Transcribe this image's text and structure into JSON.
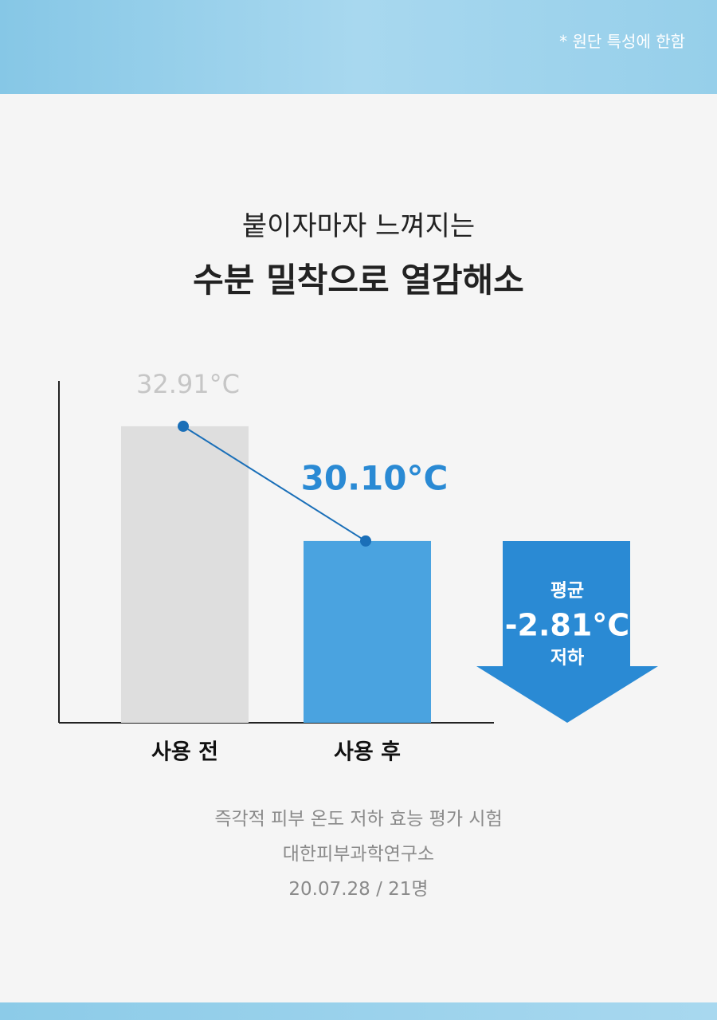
{
  "header": {
    "note": "* 원단 특성에 한함"
  },
  "title": {
    "line1": "붙이자마자 느껴지는",
    "line2": "수분 밀착으로 열감해소"
  },
  "chart_data": {
    "type": "bar",
    "categories": [
      "사용 전",
      "사용 후"
    ],
    "values": [
      32.91,
      30.1
    ],
    "value_labels": [
      "32.91°C",
      "30.10°C"
    ],
    "colors": [
      "#dedede",
      "#4aa3e0"
    ],
    "label_colors": [
      "#c6c6c6",
      "#2a8ad4"
    ],
    "line_color": "#1a6fb8",
    "ylim": [
      25.65,
      34.02
    ],
    "annotation": {
      "lines": [
        "평균",
        "-2.81°C",
        "저하"
      ],
      "color": "#2a8ad4"
    }
  },
  "footer": {
    "lines": [
      "즉각적 피부 온도 저하 효능 평가 시험",
      "대한피부과학연구소",
      "20.07.28 / 21명"
    ]
  }
}
